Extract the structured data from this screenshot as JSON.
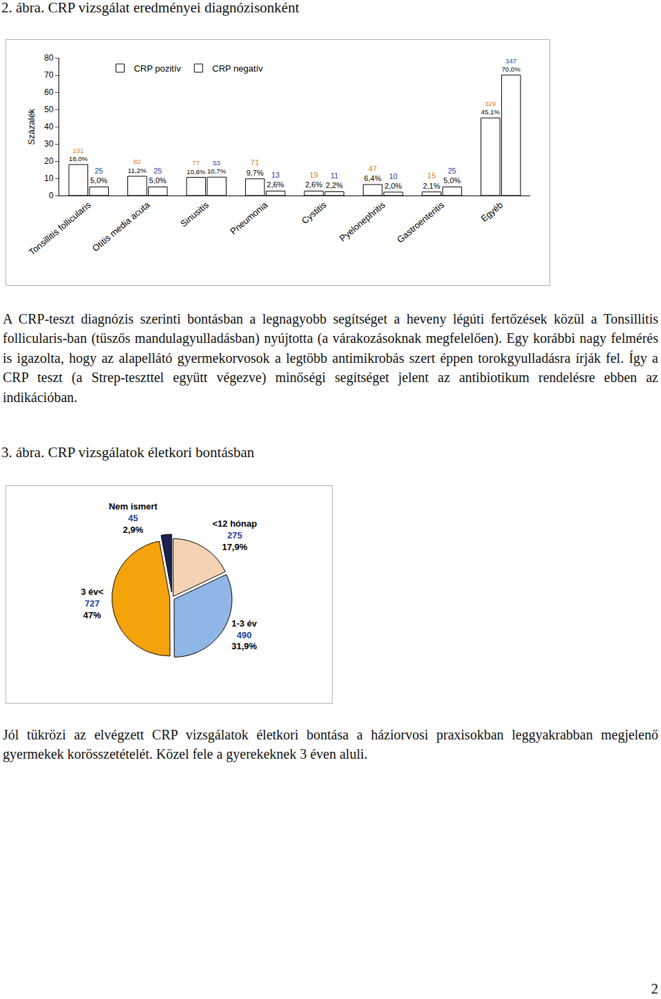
{
  "chart_data": [
    {
      "type": "bar",
      "title": "2. ábra. CRP vizsgálat eredményei diagnózisonként",
      "categories": [
        "Tonsillitis follicularis",
        "Otitis media acuta",
        "Sinusitis",
        "Pneumonia",
        "Cystitis",
        "Pyelonephritis",
        "Gastroenteritis",
        "Egyéb"
      ],
      "series": [
        {
          "name": "CRP pozitív",
          "color": "#ffffff",
          "values": [
            18.0,
            11.2,
            10.6,
            9.7,
            2.6,
            6.4,
            2.1,
            45.1
          ],
          "value_labels": [
            "18,0%",
            "11,2%",
            "10,6%",
            "9,7%",
            "2,6%",
            "6,4%",
            "2,1%",
            "45,1%"
          ],
          "counts": [
            131,
            82,
            77,
            71,
            19,
            47,
            15,
            329
          ]
        },
        {
          "name": "CRP negatív",
          "color": "#ffffff",
          "values": [
            5.0,
            5.0,
            10.7,
            2.6,
            2.2,
            2.0,
            5.0,
            70.0
          ],
          "value_labels": [
            "5,0%",
            "5,0%",
            "10,7%",
            "2,6%",
            "2,2%",
            "2,0%",
            "5,0%",
            "70,0%"
          ],
          "counts": [
            25,
            25,
            53,
            13,
            11,
            10,
            25,
            347
          ]
        }
      ],
      "y_label": "Százalék",
      "ylim": [
        0,
        80
      ],
      "yticks": [
        0,
        10,
        20,
        30,
        40,
        50,
        60,
        70,
        80
      ],
      "grid": false,
      "legend": "top left",
      "data_labels": true
    },
    {
      "type": "pie",
      "title": "3. ábra. CRP vizsgálatok életkori bontásban",
      "categories": [
        "<12 hónap",
        "1-3 év",
        "3 év<",
        "Nem ismert"
      ],
      "values": [
        17.9,
        31.9,
        47,
        2.9
      ],
      "value_labels": [
        "17,9%",
        "31,9%",
        "47%",
        "2,9%"
      ],
      "counts": [
        275,
        490,
        727,
        45
      ],
      "colors": [
        "#f3d3b4",
        "#8fb6e6",
        "#f5a30a",
        "#1b2150"
      ],
      "data_labels": true
    }
  ],
  "document": {
    "paragraphs": [
      "A CRP-teszt diagnózis szerinti bontásban a legnagyobb segítséget a heveny légúti fertőzések közül a Tonsillitis follicularis-ban (tüszős mandulagyulladásban) nyújtotta (a várakozásoknak megfelelően). Egy korábbi nagy felmérés is igazolta, hogy az alapellátó gyermekorvosok a legtöbb antimikrobás szert éppen torokgyulladásra írják fel. Így a CRP teszt (a Strep-teszttel együtt végezve) minőségi segítséget jelent az antibiotikum rendelésre ebben az indikációban.",
      "Jól tükrözi az elvégzett CRP vizsgálatok életkori bontása a háziorvosi praxisokban leggyakrabban megjelenő gyermekek korösszetételét. Közel fele a gyerekeknek 3 éven aluli."
    ],
    "page_number": 2
  }
}
